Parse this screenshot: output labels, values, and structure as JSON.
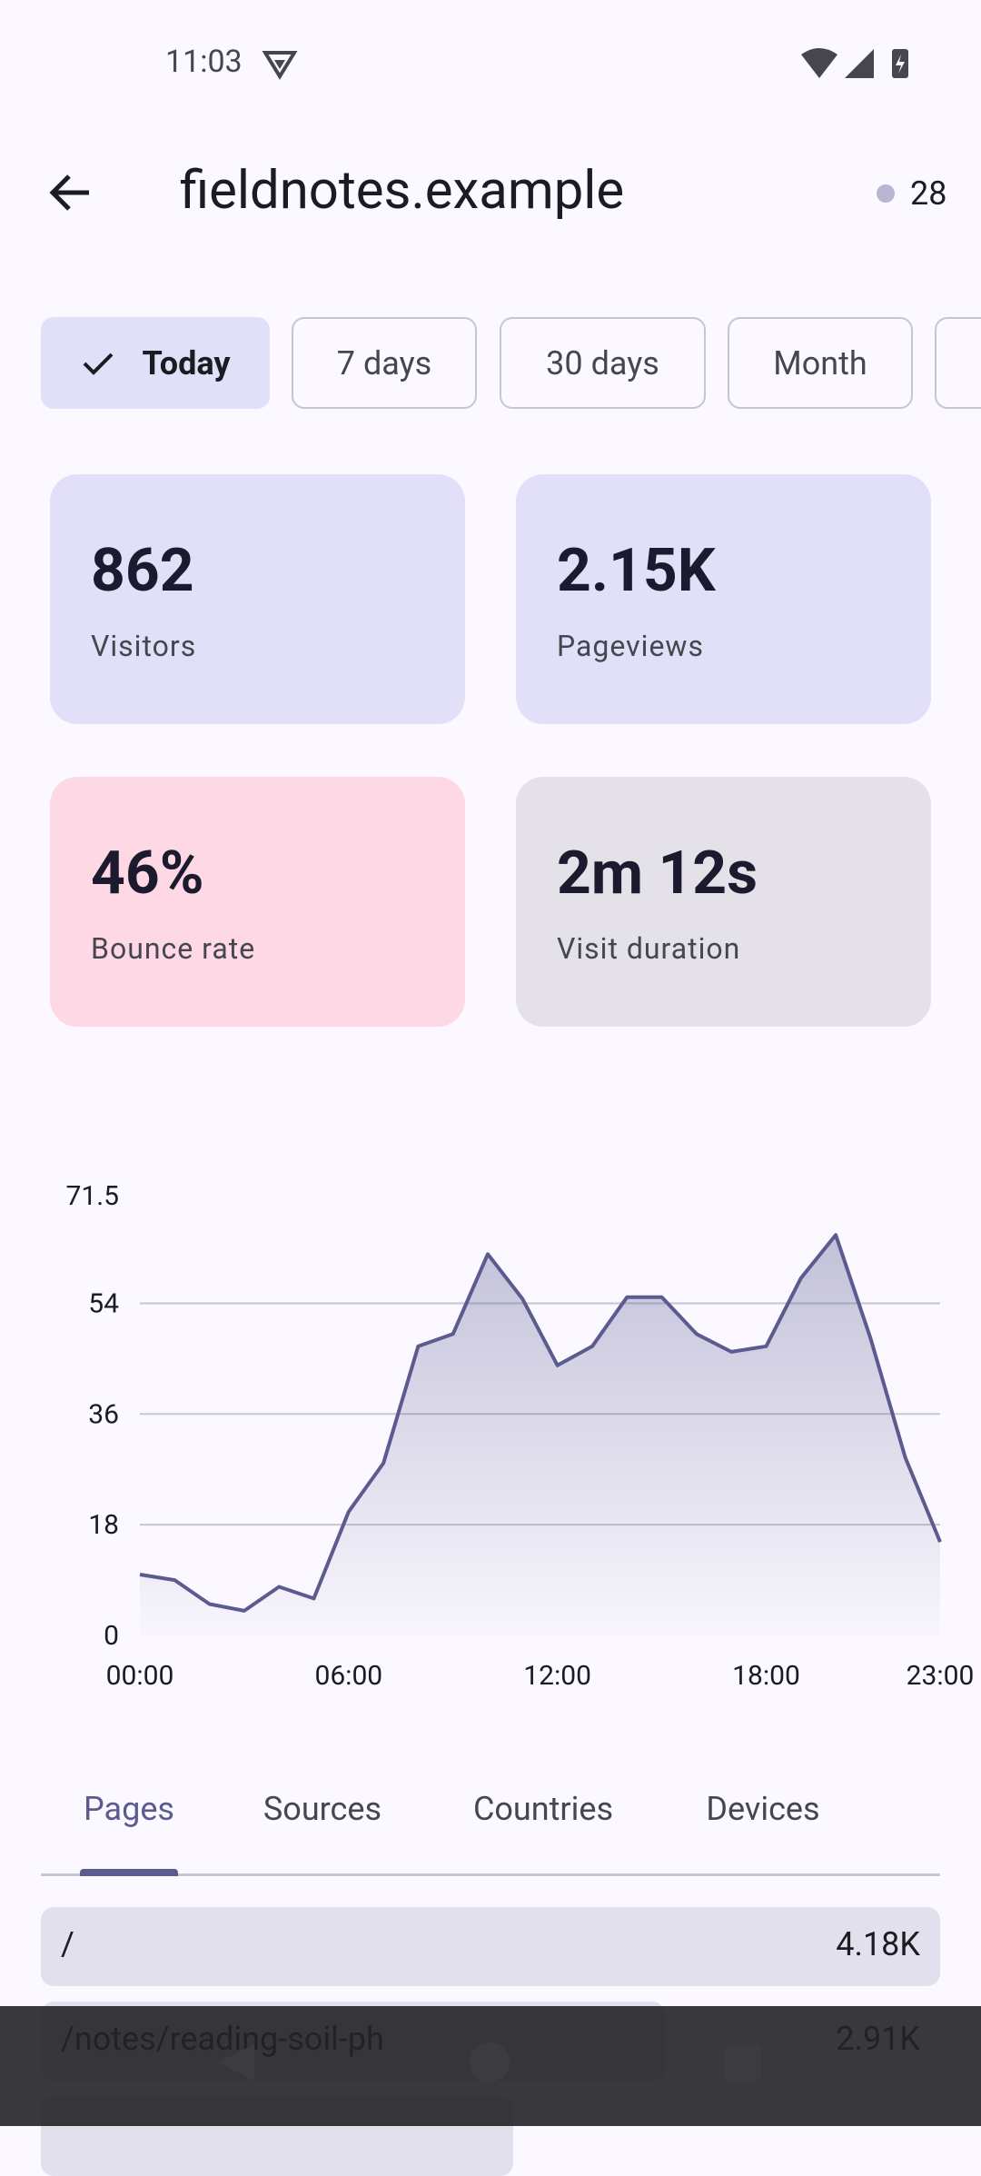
{
  "status_bar": {
    "time": "11:03"
  },
  "app_bar": {
    "title": "fieldnotes.example",
    "live_count": "28"
  },
  "filters": [
    {
      "label": "Today",
      "selected": true
    },
    {
      "label": "7 days",
      "selected": false
    },
    {
      "label": "30 days",
      "selected": false
    },
    {
      "label": "Month",
      "selected": false
    }
  ],
  "stats": [
    {
      "value": "862",
      "label": "Visitors",
      "color": "#e2e0f9"
    },
    {
      "value": "2.15K",
      "label": "Pageviews",
      "color": "#e2e0f9"
    },
    {
      "value": "46%",
      "label": "Bounce rate",
      "color": "#ffd8e6"
    },
    {
      "value": "2m 12s",
      "label": "Visit duration",
      "color": "#e4e1e9"
    }
  ],
  "chart_data": {
    "type": "area",
    "categories": [
      "00:00",
      null,
      null,
      null,
      null,
      null,
      "06:00",
      null,
      null,
      null,
      null,
      null,
      "12:00",
      null,
      null,
      null,
      null,
      null,
      "18:00",
      null,
      null,
      null,
      null,
      "23:00"
    ],
    "values": [
      9.9,
      9.0,
      5.1,
      4.0,
      7.9,
      6.0,
      20.1,
      28.0,
      47.0,
      49.0,
      62.0,
      54.7,
      43.9,
      47.0,
      55.0,
      55.0,
      49.0,
      46.1,
      47.0,
      58.1,
      65.1,
      48.3,
      28.9,
      15.2
    ],
    "color": "#5b5b90",
    "ylim": [
      0,
      71.5
    ],
    "yticks": [
      0,
      18,
      36,
      54,
      71.5
    ],
    "grid": true
  },
  "tabs": [
    "Pages",
    "Sources",
    "Countries",
    "Devices"
  ],
  "selected_tab": 0,
  "rows": [
    {
      "path": "/",
      "value": "4.18K"
    },
    {
      "path": "/notes/reading-soil-ph",
      "value": "2.91K"
    }
  ]
}
